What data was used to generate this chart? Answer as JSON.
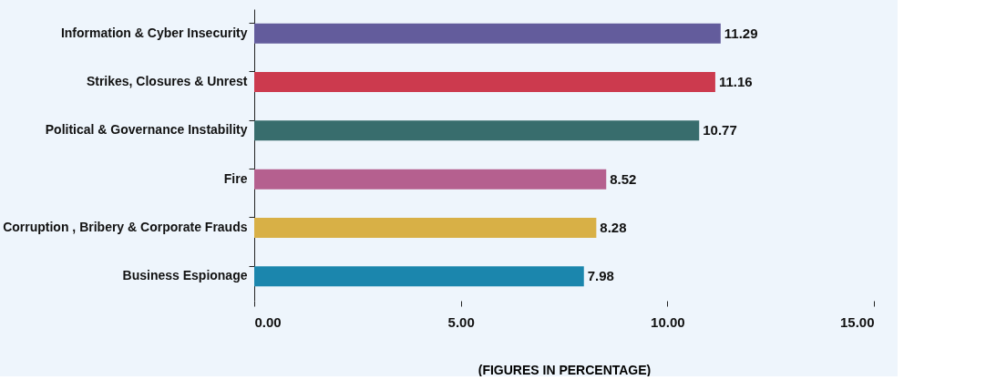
{
  "chart_data": {
    "type": "bar",
    "orientation": "horizontal",
    "categories": [
      "Information & Cyber Insecurity",
      "Strikes, Closures & Unrest",
      "Political & Governance Instability",
      "Fire",
      "Corruption , Bribery & Corporate Frauds",
      "Business Espionage"
    ],
    "values": [
      11.29,
      11.16,
      10.77,
      8.52,
      8.28,
      7.98
    ],
    "colors": [
      "#635c9c",
      "#cc3a4e",
      "#386d6d",
      "#b5608f",
      "#d8b046",
      "#1b86ad"
    ],
    "xlim": [
      0,
      15
    ],
    "xticks": [
      {
        "value": 0,
        "label": "0.00"
      },
      {
        "value": 5,
        "label": "5.00"
      },
      {
        "value": 10,
        "label": "10.00"
      },
      {
        "value": 15,
        "label": "15.00"
      }
    ],
    "xlabel": "(FIGURES IN PERCENTAGE)",
    "data_labels": true,
    "grid": false
  }
}
